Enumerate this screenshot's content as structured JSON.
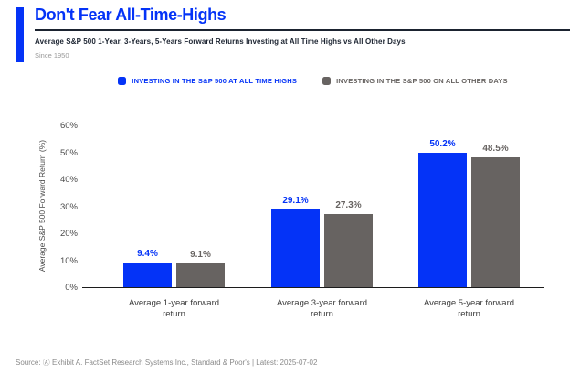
{
  "header": {
    "title": "Don't Fear All-Time-Highs",
    "subtitle": "Average S&P 500 1-Year, 3-Years, 5-Years Forward Returns Investing at All Time Highs vs All Other Days",
    "period": "Since 1950"
  },
  "legend": [
    {
      "label": "INVESTING IN THE S&P 500 AT ALL TIME HIGHS",
      "color": "#0433f7"
    },
    {
      "label": "INVESTING IN THE S&P 500 ON ALL OTHER DAYS",
      "color": "#676361"
    }
  ],
  "chart_data": {
    "type": "bar",
    "title": "Don't Fear All-Time-Highs",
    "categories": [
      "Average 1-year forward return",
      "Average 3-year forward return",
      "Average 5-year forward return"
    ],
    "series": [
      {
        "name": "Investing in the S&P 500 at all time highs",
        "color": "#0433f7",
        "values": [
          9.4,
          29.1,
          50.2
        ],
        "labels": [
          "9.4%",
          "29.1%",
          "50.2%"
        ]
      },
      {
        "name": "Investing in the S&P 500 on all other days",
        "color": "#676361",
        "values": [
          9.1,
          27.3,
          48.5
        ],
        "labels": [
          "9.1%",
          "27.3%",
          "48.5%"
        ]
      }
    ],
    "xlabel": "",
    "ylabel": "Average S&P 500 Forward Return (%)",
    "ylim": [
      0,
      60
    ],
    "yticks": [
      "0%",
      "10%",
      "20%",
      "30%",
      "40%",
      "50%",
      "60%"
    ],
    "grid": false,
    "legend_position": "top"
  },
  "footer": {
    "source": "Source: Ⓐ Exhibit A. FactSet Research Systems Inc., Standard & Poor's | Latest: 2025-07-02"
  }
}
